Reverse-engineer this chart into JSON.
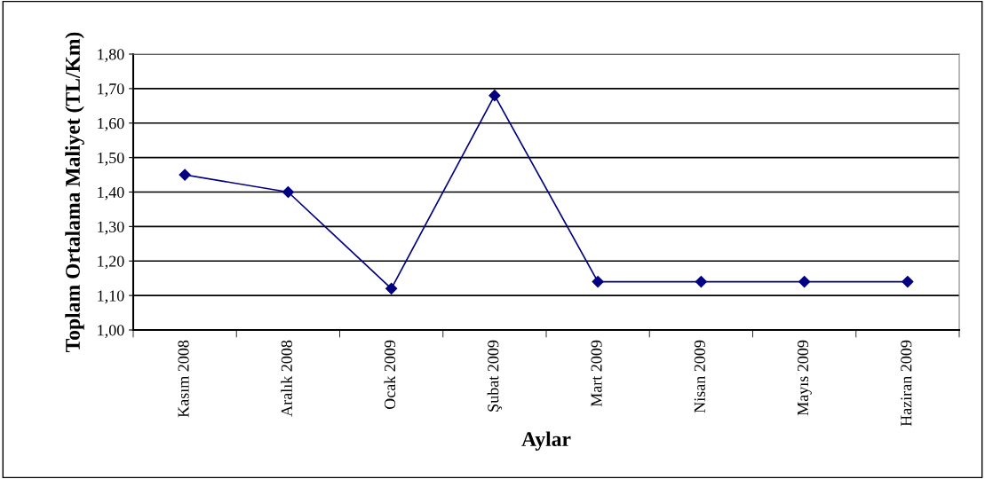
{
  "chart_data": {
    "type": "line",
    "xlabel": "Aylar",
    "ylabel": "Toplam Ortalama Maliyet (TL/Km)",
    "categories": [
      "Kasım 2008",
      "Aralık 2008",
      "Ocak 2009",
      "Şubat 2009",
      "Mart 2009",
      "Nisan 2009",
      "Mayıs 2009",
      "Haziran 2009"
    ],
    "series": [
      {
        "color": "#000080",
        "values": [
          1.45,
          1.4,
          1.12,
          1.68,
          1.14,
          1.14,
          1.14,
          1.14
        ]
      }
    ],
    "ylim": [
      1.0,
      1.8
    ],
    "yticks": [
      {
        "value": 1.0,
        "label": "1,00"
      },
      {
        "value": 1.1,
        "label": "1,10"
      },
      {
        "value": 1.2,
        "label": "1,20"
      },
      {
        "value": 1.3,
        "label": "1,30"
      },
      {
        "value": 1.4,
        "label": "1,40"
      },
      {
        "value": 1.5,
        "label": "1,50"
      },
      {
        "value": 1.6,
        "label": "1,60"
      },
      {
        "value": 1.7,
        "label": "1,70"
      },
      {
        "value": 1.8,
        "label": "1,80"
      }
    ],
    "grid": "y",
    "marker": "diamond",
    "line_style": "solid"
  }
}
